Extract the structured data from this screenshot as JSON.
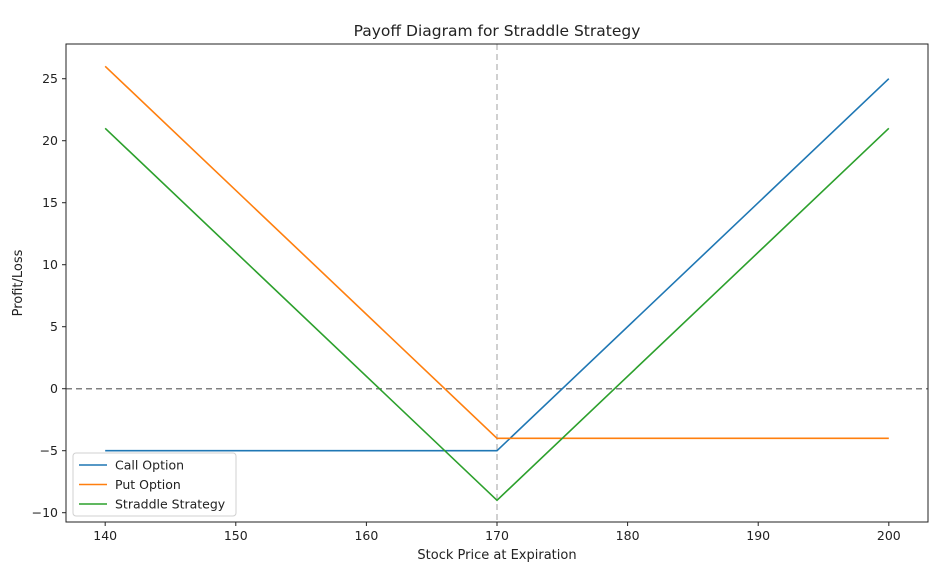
{
  "chart_data": {
    "type": "line",
    "title": "Payoff Diagram for Straddle Strategy",
    "xlabel": "Stock Price at Expiration",
    "ylabel": "Profit/Loss",
    "xlim": [
      137,
      203
    ],
    "ylim": [
      -10.75,
      27.8
    ],
    "xticks": [
      140,
      150,
      160,
      170,
      180,
      190,
      200
    ],
    "yticks": [
      -10,
      -5,
      0,
      5,
      10,
      15,
      20,
      25
    ],
    "grid": false,
    "legend_position": "lower-left",
    "reference_lines": [
      {
        "orientation": "horizontal",
        "value": 0,
        "style": "dashed",
        "color": "#808080"
      },
      {
        "orientation": "vertical",
        "value": 170,
        "style": "dashed",
        "color": "#c0c0c0"
      }
    ],
    "series": [
      {
        "name": "Call Option",
        "color": "#1f77b4",
        "x": [
          140,
          170,
          200
        ],
        "y": [
          -5,
          -5,
          25
        ]
      },
      {
        "name": "Put Option",
        "color": "#ff7f0e",
        "x": [
          140,
          170,
          200
        ],
        "y": [
          26,
          -4,
          -4
        ]
      },
      {
        "name": "Straddle Strategy",
        "color": "#2ca02c",
        "x": [
          140,
          170,
          200
        ],
        "y": [
          21,
          -9,
          21
        ]
      }
    ]
  }
}
